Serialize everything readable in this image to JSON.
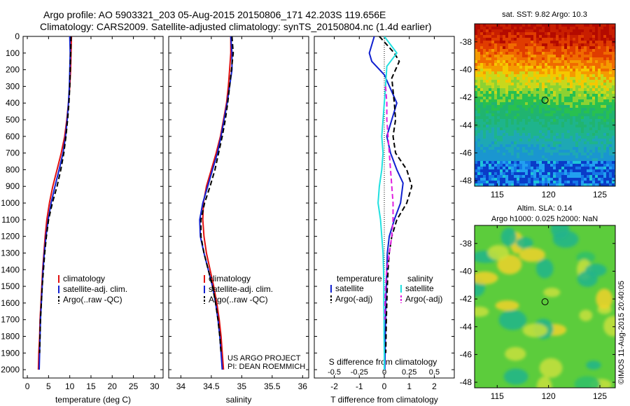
{
  "header": {
    "line1": "Argo profile: AO 5903321_203 05-Aug-2015 20150806_171 42.203S 119.656E",
    "line2": "Climatology: CARS2009. Satellite-adjusted climatology: synTS_20150804.nc (1.4d earlier)"
  },
  "side_label": "©IMOS 11-Aug-2015 20:40:05",
  "credit": {
    "line1": "US ARGO PROJECT",
    "line2": "PI: DEAN ROEMMICH"
  },
  "colors": {
    "climatology": "#e01010",
    "satellite": "#1020d0",
    "argo": "#000000",
    "satellite_s": "#20e0e0",
    "argo_s": "#e020e0"
  },
  "chart_data": [
    {
      "type": "line",
      "id": "temperature",
      "xlabel": "temperature (deg C)",
      "ylabel": "",
      "xlim": [
        -1,
        32
      ],
      "ylim": [
        2050,
        0
      ],
      "xticks": [
        0,
        5,
        10,
        15,
        20,
        25,
        30
      ],
      "yticks": [
        0,
        100,
        200,
        300,
        400,
        500,
        600,
        700,
        800,
        900,
        1000,
        1100,
        1200,
        1300,
        1400,
        1500,
        1600,
        1700,
        1800,
        1900,
        2000
      ],
      "legend": {
        "position": "lower-right",
        "entries": [
          "climatology",
          "satellite-adj. clim.",
          "Argo(..raw -QC)"
        ]
      },
      "series": [
        {
          "name": "climatology",
          "style": "solid",
          "x": [
            10.4,
            10.3,
            10.2,
            10.0,
            9.7,
            9.3,
            8.8,
            8.0,
            7.0,
            6.0,
            5.2,
            4.6,
            4.2,
            3.9,
            3.6,
            3.4,
            3.2,
            3.0,
            2.9,
            2.7,
            2.6
          ],
          "y": [
            0,
            100,
            200,
            300,
            400,
            500,
            600,
            700,
            800,
            900,
            1000,
            1100,
            1200,
            1300,
            1400,
            1500,
            1600,
            1700,
            1800,
            1900,
            2000
          ]
        },
        {
          "name": "satellite-adj. clim.",
          "style": "solid",
          "x": [
            10.0,
            10.1,
            10.0,
            9.9,
            9.7,
            9.4,
            9.0,
            8.4,
            7.5,
            6.5,
            5.6,
            4.9,
            4.4,
            4.0,
            3.7,
            3.5,
            3.3,
            3.1,
            3.0,
            2.9,
            2.8
          ],
          "y": [
            0,
            100,
            200,
            300,
            400,
            500,
            600,
            700,
            800,
            900,
            1000,
            1100,
            1200,
            1300,
            1400,
            1500,
            1600,
            1700,
            1800,
            1900,
            2000
          ]
        },
        {
          "name": "Argo(..raw -QC)",
          "style": "dashed",
          "x": [
            10.3,
            10.2,
            10.1,
            10.0,
            9.8,
            9.5,
            9.1,
            8.6,
            7.9,
            7.0,
            5.9,
            5.0,
            4.5,
            4.1,
            3.8,
            3.5,
            3.3,
            3.1,
            3.0,
            2.9
          ],
          "y": [
            0,
            100,
            200,
            300,
            400,
            500,
            600,
            700,
            800,
            900,
            1000,
            1100,
            1200,
            1300,
            1400,
            1500,
            1600,
            1700,
            1800,
            1900
          ]
        }
      ]
    },
    {
      "type": "line",
      "id": "salinity",
      "xlabel": "salinity",
      "ylabel": "",
      "xlim": [
        33.8,
        36.1
      ],
      "ylim": [
        2050,
        0
      ],
      "xticks": [
        34,
        34.5,
        35,
        35.5,
        36
      ],
      "legend": {
        "position": "lower-right",
        "entries": [
          "climatology",
          "satellite-adj. clim.",
          "Argo(..raw -QC)"
        ]
      },
      "series": [
        {
          "name": "climatology",
          "style": "solid",
          "x": [
            34.82,
            34.82,
            34.8,
            34.78,
            34.75,
            34.7,
            34.65,
            34.58,
            34.5,
            34.42,
            34.37,
            34.36,
            34.38,
            34.42,
            34.48,
            34.54,
            34.59,
            34.63,
            34.66,
            34.68,
            34.7
          ],
          "y": [
            0,
            100,
            200,
            300,
            400,
            500,
            600,
            700,
            800,
            900,
            1000,
            1100,
            1200,
            1300,
            1400,
            1500,
            1600,
            1700,
            1800,
            1900,
            2000
          ]
        },
        {
          "name": "satellite-adj. clim.",
          "style": "solid",
          "x": [
            34.82,
            34.84,
            34.84,
            34.8,
            34.76,
            34.71,
            34.66,
            34.6,
            34.52,
            34.44,
            34.36,
            34.31,
            34.32,
            34.38,
            34.45,
            34.52,
            34.57,
            34.61,
            34.64,
            34.66,
            34.68
          ],
          "y": [
            0,
            100,
            200,
            300,
            400,
            500,
            600,
            700,
            800,
            900,
            1000,
            1100,
            1200,
            1300,
            1400,
            1500,
            1600,
            1700,
            1800,
            1900,
            2000
          ]
        },
        {
          "name": "Argo(..raw -QC)",
          "style": "dashed",
          "x": [
            34.84,
            34.86,
            34.83,
            34.8,
            34.77,
            34.73,
            34.68,
            34.62,
            34.56,
            34.48,
            34.39,
            34.33,
            34.33,
            34.38,
            34.45,
            34.52,
            34.57,
            34.61,
            34.64,
            34.66
          ],
          "y": [
            0,
            100,
            200,
            300,
            400,
            500,
            600,
            700,
            800,
            900,
            1000,
            1100,
            1200,
            1300,
            1400,
            1500,
            1600,
            1700,
            1800,
            1900
          ]
        }
      ]
    },
    {
      "type": "line",
      "id": "difference",
      "xlabel": "T difference from climatology",
      "xlabel_top": "S difference from climatology",
      "ylabel": "",
      "xlim": [
        -2.8,
        2.8
      ],
      "ylim": [
        2050,
        0
      ],
      "xticks": [
        -2,
        -1,
        0,
        1,
        2
      ],
      "xticks_s_labels": [
        "-0.5",
        "-0.25",
        "0",
        "0.25",
        "0.5"
      ],
      "legend": {
        "position": "lower-center",
        "groups": [
          {
            "title": "temperature",
            "entries": [
              "satellite",
              "Argo(-adj)"
            ]
          },
          {
            "title": "salinity",
            "entries": [
              "satellite",
              "Argo(-adj)"
            ]
          }
        ]
      },
      "series": [
        {
          "name": "satellite",
          "group": "temperature",
          "style": "solid",
          "x": [
            -0.4,
            -0.6,
            -0.5,
            0.0,
            0.5,
            0.3,
            0.1,
            0.25,
            0.5,
            0.75,
            0.65,
            0.4,
            0.2,
            0.12,
            0.1,
            0.08,
            0.06,
            0.05,
            0.04,
            0.03,
            0.02
          ],
          "y": [
            0,
            100,
            150,
            230,
            400,
            500,
            600,
            700,
            800,
            880,
            1000,
            1100,
            1200,
            1300,
            1400,
            1500,
            1600,
            1700,
            1800,
            1900,
            2000
          ]
        },
        {
          "name": "Argo(-adj)",
          "group": "temperature",
          "style": "dashed",
          "x": [
            -0.2,
            0.4,
            0.6,
            0.3,
            0.4,
            0.45,
            0.35,
            0.45,
            0.9,
            1.1,
            0.9,
            0.5,
            0.3,
            0.2,
            0.15,
            0.12,
            0.1,
            0.08,
            0.07,
            0.06
          ],
          "y": [
            0,
            100,
            150,
            250,
            400,
            500,
            600,
            700,
            800,
            900,
            1000,
            1100,
            1200,
            1300,
            1400,
            1500,
            1600,
            1700,
            1800,
            1900
          ]
        },
        {
          "name": "satellite",
          "group": "salinity",
          "style": "solid",
          "x": [
            0.0,
            0.5,
            0.1,
            0.05,
            0.0,
            -0.05,
            -0.1,
            -0.05,
            -0.1,
            -0.2,
            -0.25,
            -0.15,
            -0.1,
            -0.05,
            -0.03,
            -0.02,
            -0.02,
            -0.01,
            -0.01,
            0.0,
            0.0
          ],
          "y": [
            0,
            100,
            180,
            300,
            400,
            500,
            600,
            700,
            800,
            900,
            1000,
            1100,
            1200,
            1300,
            1400,
            1500,
            1600,
            1700,
            1800,
            1900,
            2000
          ]
        },
        {
          "name": "Argo(-adj)",
          "group": "salinity",
          "style": "dashed",
          "x": [
            0.05,
            0.1,
            0.1,
            0.15,
            0.2,
            0.25,
            0.3,
            0.35,
            0.35,
            0.3,
            0.2,
            0.1,
            0.05,
            0.03,
            0.02
          ],
          "y": [
            300,
            400,
            500,
            600,
            700,
            800,
            900,
            1000,
            1100,
            1200,
            1300,
            1400,
            1500,
            1600,
            1700
          ]
        }
      ]
    },
    {
      "type": "heatmap",
      "id": "sst_map",
      "title": "sat. SST: 9.82  Argo: 10.3",
      "xlim": [
        112.8,
        126.5
      ],
      "ylim": [
        -48.4,
        -36.7
      ],
      "xticks": [
        115,
        120,
        125
      ],
      "yticks": [
        -38,
        -40,
        -42,
        -44,
        -46,
        -48
      ],
      "xtick_labels": [
        "115",
        "120",
        "125"
      ],
      "ytick_labels": [
        "-38",
        "-40",
        "-42",
        "-44",
        "-46",
        "-48"
      ],
      "marker": {
        "lon": 119.656,
        "lat": -42.203
      }
    },
    {
      "type": "heatmap",
      "id": "sla_map",
      "title_line1": "Altim. SLA: 0.14",
      "title_line2": "Argo h1000: 0.025 h2000: NaN",
      "xlim": [
        112.8,
        126.5
      ],
      "ylim": [
        -48.4,
        -36.7
      ],
      "xticks": [
        115,
        120,
        125
      ],
      "yticks": [
        -38,
        -40,
        -42,
        -44,
        -46,
        -48
      ],
      "xtick_labels": [
        "115",
        "120",
        "125"
      ],
      "ytick_labels": [
        "-38",
        "-40",
        "-42",
        "-44",
        "-46",
        "-48"
      ],
      "marker": {
        "lon": 119.656,
        "lat": -42.203
      }
    }
  ]
}
